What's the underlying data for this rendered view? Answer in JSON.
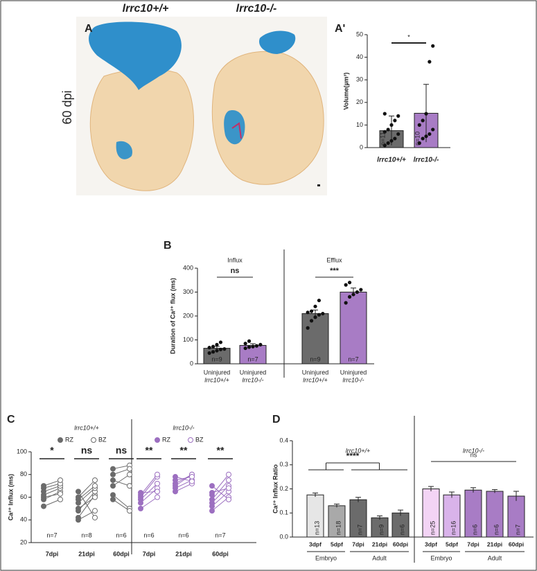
{
  "figure": {
    "panel_a": {
      "letter": "A",
      "columns": [
        "lrrc10+/+",
        "lrrc10-/-"
      ],
      "row_label": "60 dpi"
    }
  },
  "chart_data": [
    {
      "type": "bar",
      "panel": "A'",
      "ylabel": "Volume(µm³)",
      "categories": [
        "lrrc10+/+",
        "lrrc10-/-"
      ],
      "values": [
        7.5,
        15.2
      ],
      "errors": [
        6.5,
        12.8
      ],
      "colors": [
        "#6b6b6b",
        "#a87cc5"
      ],
      "n_labels": [
        "n=11",
        "n=10"
      ],
      "points": [
        [
          1,
          2,
          3,
          4,
          6,
          7,
          8,
          10,
          12,
          14,
          15
        ],
        [
          2,
          4,
          5,
          6,
          8,
          10,
          12,
          15,
          38,
          45
        ]
      ],
      "ylim": [
        0,
        50
      ],
      "yticks": [
        0,
        10,
        20,
        30,
        40,
        50
      ],
      "significance": "*"
    },
    {
      "type": "bar",
      "panel": "B",
      "ylabel": "Duration of Ca²⁺ flux (ms)",
      "groups": [
        {
          "name": "Influx",
          "significance": "ns"
        },
        {
          "name": "Efflux",
          "significance": "***"
        }
      ],
      "categories": [
        [
          "Uninjured",
          "lrrc10+/+"
        ],
        [
          "Uninjured",
          "lrrc10-/-"
        ],
        [
          "Uninjured",
          "lrrc10+/+"
        ],
        [
          "Uninjured",
          "lrrc10-/-"
        ]
      ],
      "values": [
        65,
        77,
        210,
        300
      ],
      "errors": [
        8,
        7,
        15,
        17
      ],
      "colors": [
        "#6b6b6b",
        "#a87cc5",
        "#6b6b6b",
        "#a87cc5"
      ],
      "n_labels": [
        "n=9",
        "n=7",
        "n=9",
        "n=7"
      ],
      "points": [
        [
          45,
          50,
          55,
          60,
          62,
          68,
          72,
          80,
          90
        ],
        [
          65,
          70,
          72,
          75,
          80,
          85,
          95
        ],
        [
          150,
          180,
          195,
          205,
          210,
          215,
          220,
          240,
          265
        ],
        [
          255,
          280,
          290,
          300,
          310,
          330,
          340
        ]
      ],
      "ylim": [
        0,
        400
      ],
      "yticks": [
        0,
        100,
        200,
        300,
        400
      ]
    },
    {
      "type": "paired",
      "panel": "C",
      "ylabel": "Ca²⁺ Influx (ms)",
      "ylim": [
        20,
        100
      ],
      "yticks": [
        20,
        40,
        60,
        80,
        100
      ],
      "legend": [
        "RZ",
        "BZ"
      ],
      "groups": [
        {
          "name": "lrrc10+/+",
          "color": "#6b6b6b",
          "timepoints": [
            {
              "label": "7dpi",
              "significance": "*",
              "n_label": "n=7",
              "rz": [
                52,
                58,
                62,
                65,
                68,
                70,
                60
              ],
              "bz": [
                58,
                65,
                68,
                70,
                72,
                75,
                63
              ]
            },
            {
              "label": "21dpi",
              "significance": "ns",
              "n_label": "n=8",
              "rz": [
                40,
                42,
                48,
                55,
                58,
                60,
                65,
                50
              ],
              "bz": [
                48,
                62,
                65,
                68,
                70,
                75,
                42,
                60
              ]
            },
            {
              "label": "60dpi",
              "significance": "ns",
              "n_label": "n=6",
              "rz": [
                85,
                80,
                75,
                70,
                62,
                58
              ],
              "bz": [
                88,
                85,
                70,
                80,
                50,
                48
              ]
            }
          ]
        },
        {
          "name": "lrrc10-/-",
          "color": "#9c6fc0",
          "timepoints": [
            {
              "label": "7dpi",
              "significance": "**",
              "n_label": "n=6",
              "rz": [
                50,
                55,
                58,
                60,
                62,
                64
              ],
              "bz": [
                60,
                68,
                72,
                78,
                80,
                65
              ]
            },
            {
              "label": "21dpi",
              "significance": "**",
              "n_label": "n=6",
              "rz": [
                65,
                68,
                70,
                72,
                75,
                78
              ],
              "bz": [
                72,
                75,
                80,
                80,
                78,
                74
              ]
            },
            {
              "label": "60dpi",
              "significance": "**",
              "n_label": "n=7",
              "rz": [
                48,
                52,
                55,
                58,
                62,
                64,
                70
              ],
              "bz": [
                60,
                65,
                70,
                75,
                80,
                68,
                58
              ]
            }
          ]
        }
      ]
    },
    {
      "type": "bar",
      "panel": "D",
      "ylabel": "Ca²⁺ Influx Ratio",
      "groups": [
        {
          "name": "lrrc10+/+",
          "significance": "****",
          "stages": [
            "Embryo",
            "Adult"
          ]
        },
        {
          "name": "lrrc10-/-",
          "significance": "ns",
          "stages": [
            "Embryo",
            "Adult"
          ]
        }
      ],
      "categories": [
        "3dpf",
        "5dpf",
        "7dpi",
        "21dpi",
        "60dpi",
        "3dpf",
        "5dpf",
        "7dpi",
        "21dpi",
        "60dpi"
      ],
      "values": [
        0.175,
        0.13,
        0.155,
        0.08,
        0.1,
        0.2,
        0.175,
        0.195,
        0.19,
        0.17
      ],
      "errors": [
        0.008,
        0.007,
        0.01,
        0.008,
        0.012,
        0.01,
        0.012,
        0.01,
        0.007,
        0.02
      ],
      "colors": [
        "#e6e6e6",
        "#a9a9a9",
        "#6b6b6b",
        "#6b6b6b",
        "#6b6b6b",
        "#f3d4f5",
        "#d9b3ea",
        "#a87cc5",
        "#a87cc5",
        "#a87cc5"
      ],
      "n_labels": [
        "n=13",
        "n=18",
        "n=7",
        "n=9",
        "n=6",
        "n=25",
        "n=16",
        "n=6",
        "n=6",
        "n=7"
      ],
      "ylim": [
        0,
        0.4
      ],
      "yticks": [
        {
          "value": 0,
          "label": "0.0"
        },
        0.1,
        0.2,
        0.3,
        0.4
      ]
    }
  ]
}
